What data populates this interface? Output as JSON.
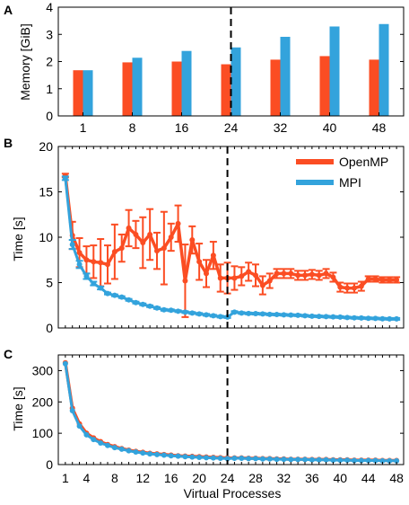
{
  "colors": {
    "openmp": "#fb4d23",
    "mpi": "#33a3dc",
    "axis": "#000000"
  },
  "chart_data": [
    {
      "panel": "A",
      "type": "bar",
      "ylabel": "Memory [GiB]",
      "xlabel": "",
      "ylim": [
        0,
        4
      ],
      "yticks": [
        0,
        1,
        2,
        3,
        4
      ],
      "categories": [
        "1",
        "8",
        "16",
        "24",
        "32",
        "40",
        "48"
      ],
      "series": [
        {
          "key": "openmp",
          "values": [
            1.68,
            1.97,
            2.0,
            1.9,
            2.07,
            2.2,
            2.07
          ]
        },
        {
          "key": "mpi",
          "values": [
            1.68,
            2.14,
            2.39,
            2.52,
            2.91,
            3.29,
            3.38
          ]
        }
      ],
      "vline_category": "24"
    },
    {
      "panel": "B",
      "type": "line",
      "ylabel": "Time [s]",
      "xlabel": "",
      "xlim": [
        0,
        49
      ],
      "ylim": [
        0,
        20
      ],
      "yticks": [
        0,
        5,
        10,
        15,
        20
      ],
      "vline_x": 24,
      "legend": {
        "position": "top-right",
        "entries": [
          "OpenMP",
          "MPI"
        ]
      },
      "series": [
        {
          "key": "openmp",
          "name": "OpenMP",
          "x": [
            1,
            2,
            3,
            4,
            5,
            6,
            7,
            8,
            9,
            10,
            11,
            12,
            13,
            14,
            15,
            16,
            17,
            18,
            19,
            20,
            21,
            22,
            23,
            24,
            25,
            26,
            27,
            28,
            29,
            30,
            31,
            32,
            33,
            34,
            35,
            36,
            37,
            38,
            39,
            40,
            41,
            42,
            43,
            44,
            45,
            46,
            47,
            48
          ],
          "y": [
            16.8,
            10.2,
            8.3,
            7.5,
            7.3,
            7.2,
            7.0,
            8.4,
            8.8,
            11.0,
            10.3,
            9.4,
            10.3,
            8.5,
            8.8,
            10.0,
            11.5,
            5.2,
            9.7,
            7.3,
            6.0,
            8.0,
            5.5,
            5.5,
            5.5,
            5.7,
            6.2,
            5.8,
            4.7,
            5.2,
            6.0,
            6.0,
            6.0,
            5.8,
            5.8,
            5.9,
            5.8,
            6.0,
            5.6,
            4.5,
            4.4,
            4.4,
            4.6,
            5.4,
            5.4,
            5.3,
            5.3,
            5.3
          ],
          "err": [
            0.2,
            1.5,
            1.6,
            1.5,
            1.8,
            2.6,
            2.1,
            3.0,
            1.5,
            2.0,
            1.5,
            2.8,
            2.8,
            2.0,
            4.0,
            1.5,
            2.0,
            4.0,
            1.5,
            2.0,
            1.5,
            1.5,
            1.5,
            1.7,
            1.3,
            1.0,
            1.0,
            1.2,
            1.0,
            0.8,
            0.5,
            0.5,
            0.5,
            0.5,
            0.5,
            0.5,
            0.5,
            0.5,
            0.5,
            0.5,
            0.5,
            0.5,
            0.5,
            0.3,
            0.3,
            0.3,
            0.3,
            0.3
          ]
        },
        {
          "key": "mpi",
          "name": "MPI",
          "x": [
            1,
            2,
            3,
            4,
            5,
            6,
            7,
            8,
            9,
            10,
            11,
            12,
            13,
            14,
            15,
            16,
            17,
            18,
            19,
            20,
            21,
            22,
            23,
            24,
            25,
            26,
            27,
            28,
            29,
            30,
            31,
            32,
            33,
            34,
            35,
            36,
            37,
            38,
            39,
            40,
            41,
            42,
            43,
            44,
            45,
            46,
            47,
            48
          ],
          "y": [
            16.5,
            9.2,
            7.0,
            5.7,
            4.9,
            4.4,
            3.8,
            3.6,
            3.4,
            3.1,
            2.8,
            2.6,
            2.4,
            2.2,
            2.0,
            1.95,
            1.85,
            1.75,
            1.65,
            1.55,
            1.45,
            1.35,
            1.25,
            1.2,
            1.75,
            1.65,
            1.6,
            1.58,
            1.55,
            1.5,
            1.48,
            1.45,
            1.42,
            1.4,
            1.35,
            1.3,
            1.28,
            1.25,
            1.22,
            1.2,
            1.15,
            1.12,
            1.1,
            1.07,
            1.05,
            1.02,
            1.0,
            1.0
          ],
          "err": [
            0.2,
            0.5,
            0.4,
            0.3,
            0.2,
            0.15,
            0.1,
            0.1,
            0.1,
            0.1,
            0.1,
            0.1,
            0.1,
            0.1,
            0.1,
            0.1,
            0.1,
            0.1,
            0.1,
            0.1,
            0.1,
            0.1,
            0.1,
            0.1,
            0.1,
            0.1,
            0.1,
            0.1,
            0.1,
            0.1,
            0.1,
            0.1,
            0.1,
            0.1,
            0.1,
            0.1,
            0.1,
            0.1,
            0.1,
            0.1,
            0.1,
            0.1,
            0.1,
            0.1,
            0.1,
            0.1,
            0.1,
            0.1
          ]
        }
      ]
    },
    {
      "panel": "C",
      "type": "line",
      "ylabel": "Time [s]",
      "xlabel": "Virtual Processes",
      "xlim": [
        0,
        49
      ],
      "ylim": [
        0,
        350
      ],
      "yticks": [
        0,
        100,
        200,
        300
      ],
      "xticks": [
        1,
        4,
        8,
        12,
        16,
        20,
        24,
        28,
        32,
        36,
        40,
        44,
        48
      ],
      "vline_x": 24,
      "series": [
        {
          "key": "openmp",
          "name": "OpenMP",
          "x": [
            1,
            2,
            3,
            4,
            5,
            6,
            7,
            8,
            9,
            10,
            11,
            12,
            13,
            14,
            15,
            16,
            17,
            18,
            19,
            20,
            21,
            22,
            23,
            24,
            25,
            26,
            27,
            28,
            29,
            30,
            31,
            32,
            33,
            34,
            35,
            36,
            37,
            38,
            39,
            40,
            41,
            42,
            43,
            44,
            45,
            46,
            47,
            48
          ],
          "y": [
            325,
            180,
            130,
            100,
            85,
            73,
            64,
            57,
            51,
            46,
            42,
            39,
            36,
            34,
            32,
            30,
            28,
            27,
            26,
            25,
            24,
            23,
            22,
            21,
            21,
            21,
            20,
            20,
            19,
            19,
            18,
            18,
            17,
            17,
            17,
            16,
            16,
            16,
            15,
            15,
            15,
            14,
            14,
            14,
            14,
            13,
            13,
            13
          ]
        },
        {
          "key": "mpi",
          "name": "MPI",
          "x": [
            1,
            2,
            3,
            4,
            5,
            6,
            7,
            8,
            9,
            10,
            11,
            12,
            13,
            14,
            15,
            16,
            17,
            18,
            19,
            20,
            21,
            22,
            23,
            24,
            25,
            26,
            27,
            28,
            29,
            30,
            31,
            32,
            33,
            34,
            35,
            36,
            37,
            38,
            39,
            40,
            41,
            42,
            43,
            44,
            45,
            46,
            47,
            48
          ],
          "y": [
            322,
            172,
            123,
            95,
            80,
            69,
            61,
            54,
            49,
            44,
            40,
            37,
            34,
            32,
            30,
            28,
            27,
            25,
            24,
            23,
            22,
            21,
            20,
            19,
            20,
            20,
            19,
            19,
            18,
            18,
            17,
            17,
            16,
            16,
            16,
            15,
            15,
            15,
            14,
            14,
            14,
            13,
            13,
            13,
            13,
            12,
            12,
            12
          ]
        }
      ]
    }
  ]
}
